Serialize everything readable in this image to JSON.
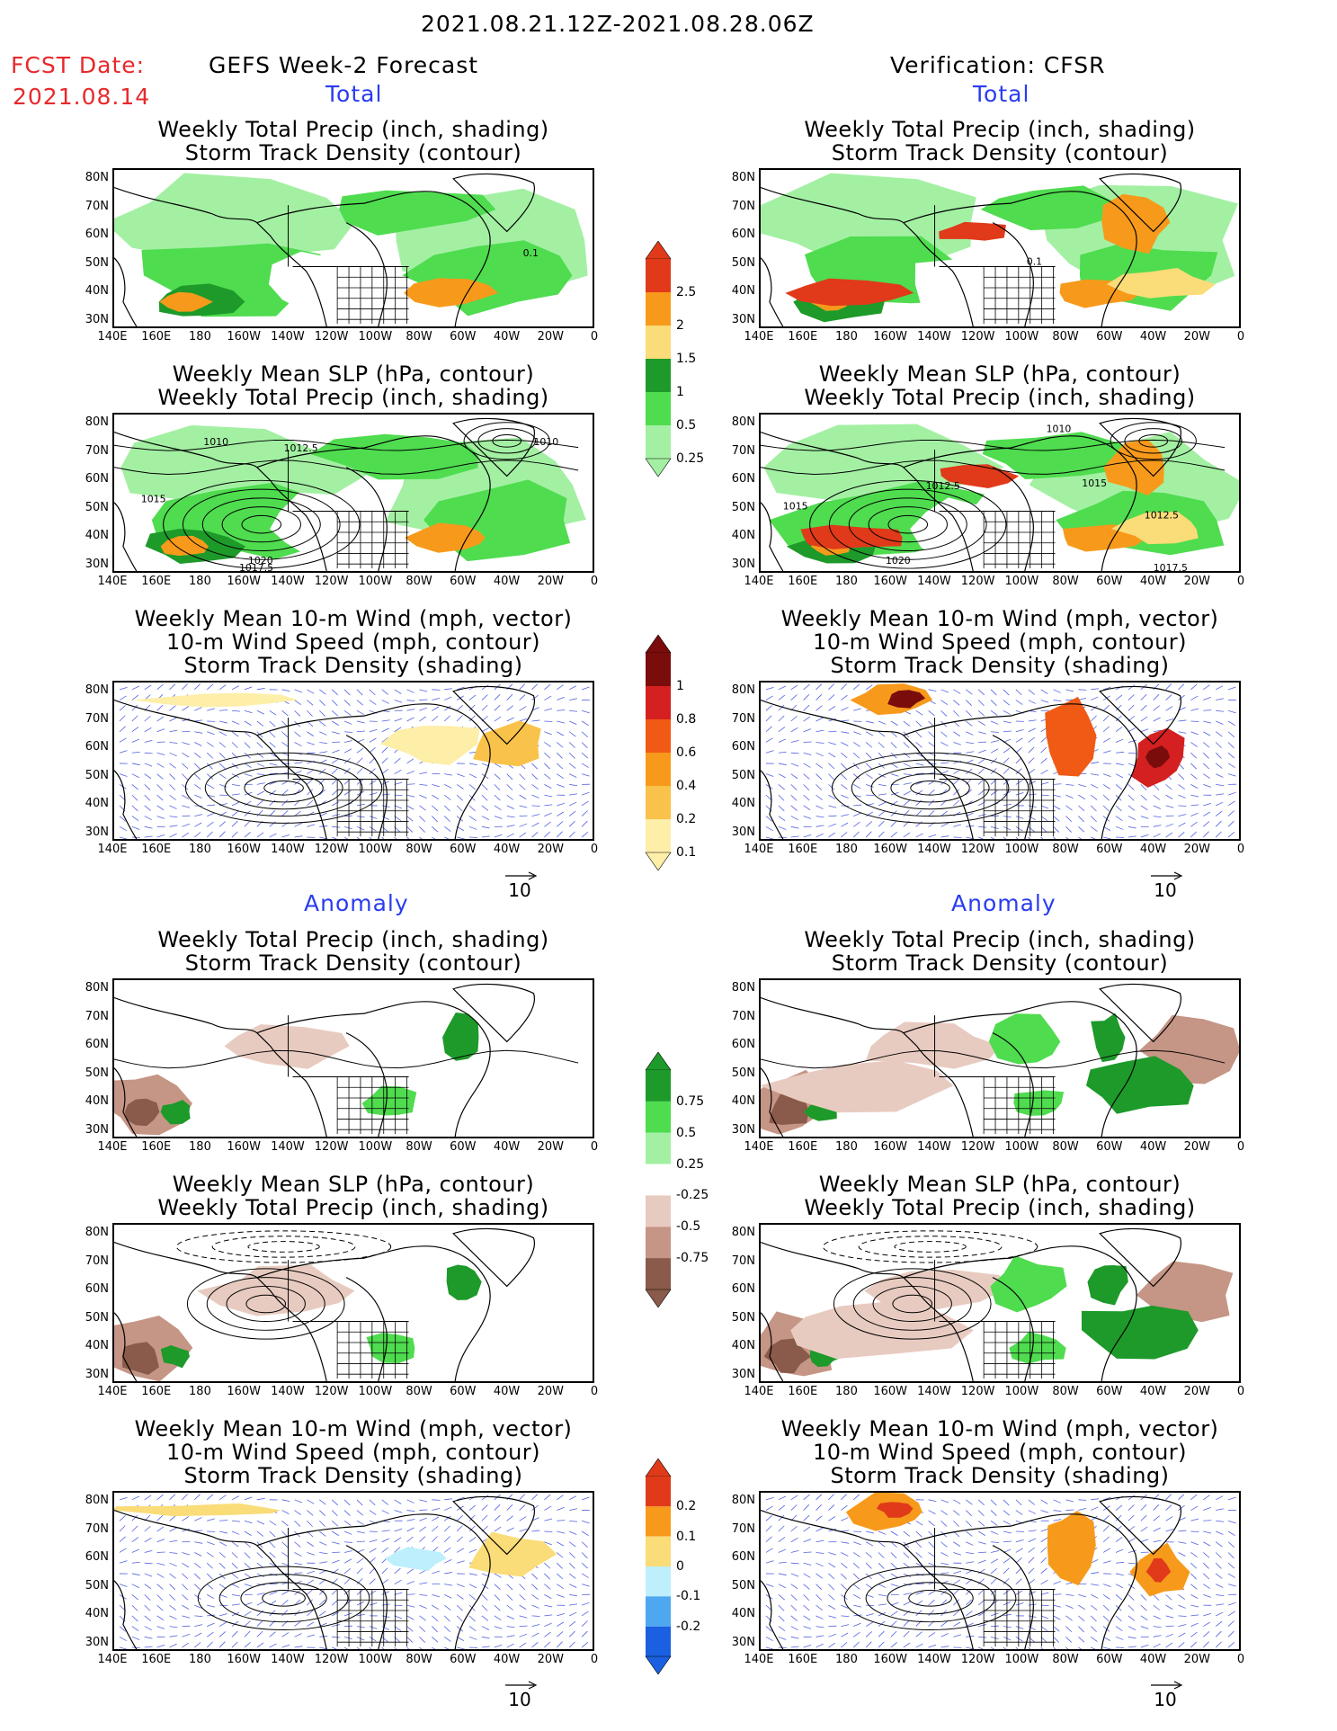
{
  "header": {
    "period": "2021.08.21.12Z-2021.08.28.06Z",
    "fcst_label": "FCST Date:",
    "fcst_date": "2021.08.14",
    "left_title": "GEFS Week-2 Forecast",
    "right_title": "Verification: CFSR",
    "total_label": "Total",
    "anomaly_label": "Anomaly"
  },
  "axes": {
    "lat_ticks": [
      "80N",
      "70N",
      "60N",
      "50N",
      "40N",
      "30N"
    ],
    "lon_ticks": [
      "140E",
      "160E",
      "180",
      "160W",
      "140W",
      "120W",
      "100W",
      "80W",
      "60W",
      "40W",
      "20W",
      "0"
    ]
  },
  "panels": {
    "precip_storm": [
      "Weekly Total Precip (inch, shading)",
      "Storm Track Density (contour)"
    ],
    "slp_precip": [
      "Weekly Mean SLP (hPa, contour)",
      "Weekly Total Precip (inch, shading)"
    ],
    "wind_storm": [
      "Weekly Mean 10-m Wind (mph, vector)",
      "10-m Wind Speed (mph, contour)",
      "Storm Track Density (shading)"
    ]
  },
  "contour_labels": {
    "left_slp_total": [
      "1010",
      "1012.5",
      "1015",
      "1020",
      "1017.5",
      "1010"
    ],
    "right_slp_total": [
      "1010",
      "1012.5",
      "1015",
      "1015",
      "1012.5",
      "1020",
      "1017.5"
    ],
    "left_storm_total": [
      "0.1"
    ],
    "right_storm_total": [
      "0.1"
    ]
  },
  "colorbars": {
    "precip_total": {
      "labels": [
        "2.5",
        "2",
        "1.5",
        "1",
        "0.5",
        "0.25"
      ],
      "colors": [
        "#e03a1a",
        "#f79a1b",
        "#fadc78",
        "#1d9a2a",
        "#4fdc4f",
        "#a3f0a3"
      ]
    },
    "storm_total": {
      "labels": [
        "1",
        "0.8",
        "0.6",
        "0.4",
        "0.2",
        "0.1"
      ],
      "colors": [
        "#7a0c0c",
        "#d42020",
        "#f05a14",
        "#f79a1b",
        "#f9c24a",
        "#fdeea8"
      ]
    },
    "precip_anom": {
      "labels": [
        "0.75",
        "0.5",
        "0.25",
        "-0.25",
        "-0.5",
        "-0.75"
      ],
      "colors": [
        "#1d9a2a",
        "#4fdc4f",
        "#a3f0a3",
        "#ffffff",
        "#e8cbc0",
        "#c59585",
        "#8a5a4a"
      ]
    },
    "storm_anom": {
      "labels": [
        "0.2",
        "0.1",
        "0",
        "-0.1",
        "-0.2"
      ],
      "colors": [
        "#e03a1a",
        "#f79a1b",
        "#fadc78",
        "#bdeffc",
        "#4ea8f0",
        "#1a60e0"
      ]
    }
  },
  "vector_ref": "10"
}
